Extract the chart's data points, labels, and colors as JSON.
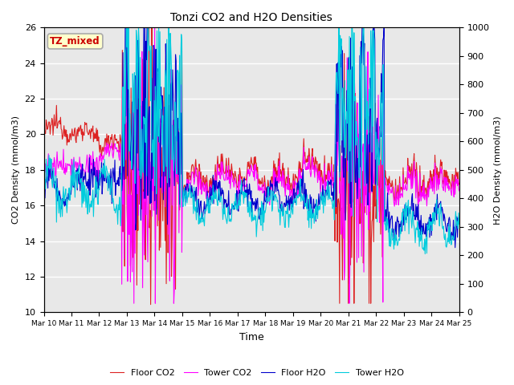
{
  "title": "Tonzi CO2 and H2O Densities",
  "xlabel": "Time",
  "ylabel_left": "CO2 Density (mmol/m3)",
  "ylabel_right": "H2O Density (mmol/m3)",
  "ylim_left": [
    10,
    26
  ],
  "ylim_right": [
    0,
    1000
  ],
  "annotation": "TZ_mixed",
  "annotation_color": "#cc0000",
  "annotation_bg": "#ffffcc",
  "annotation_border": "#aaaaaa",
  "colors": {
    "floor_co2": "#dd2222",
    "tower_co2": "#ff00ff",
    "floor_h2o": "#0000cc",
    "tower_h2o": "#00ccdd"
  },
  "legend_labels": [
    "Floor CO2",
    "Tower CO2",
    "Floor H2O",
    "Tower H2O"
  ],
  "plot_bg": "#e8e8e8",
  "fig_bg": "#ffffff",
  "grid_color": "#ffffff",
  "xtick_labels": [
    "Mar 10",
    "Mar 11",
    "Mar 12",
    "Mar 13",
    "Mar 14",
    "Mar 15",
    "Mar 16",
    "Mar 17",
    "Mar 18",
    "Mar 19",
    "Mar 20",
    "Mar 21",
    "Mar 22",
    "Mar 23",
    "Mar 24",
    "Mar 25"
  ],
  "yticks_left": [
    10,
    12,
    14,
    16,
    18,
    20,
    22,
    24,
    26
  ],
  "yticks_right": [
    0,
    100,
    200,
    300,
    400,
    500,
    600,
    700,
    800,
    900,
    1000
  ],
  "linewidth": 0.8
}
